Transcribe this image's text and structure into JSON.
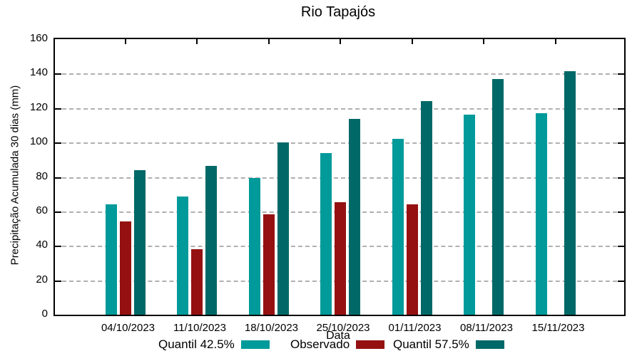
{
  "title": "Rio Tapajós",
  "chart_data": {
    "type": "bar",
    "title": "Rio Tapajós",
    "xlabel": "Data",
    "ylabel": "Precipitação Acumulada 30 dias (mm)",
    "categories": [
      "04/10/2023",
      "11/10/2023",
      "18/10/2023",
      "25/10/2023",
      "01/11/2023",
      "08/11/2023",
      "15/11/2023"
    ],
    "series": [
      {
        "name": "Quantil 42.5%",
        "color": "#009a9a",
        "values": [
          64,
          68.5,
          79.5,
          94,
          102,
          116,
          117
        ]
      },
      {
        "name": "Observado",
        "color": "#951111",
        "values": [
          54,
          38,
          58.5,
          65.5,
          64,
          null,
          null
        ]
      },
      {
        "name": "Quantil 57.5%",
        "color": "#016868",
        "values": [
          84,
          86.5,
          100,
          113.5,
          124,
          137,
          141.5
        ]
      }
    ],
    "ylim": [
      0,
      160
    ],
    "ytick_step": 20,
    "grid": "horizontal-dashed",
    "legend_position": "bottom"
  }
}
